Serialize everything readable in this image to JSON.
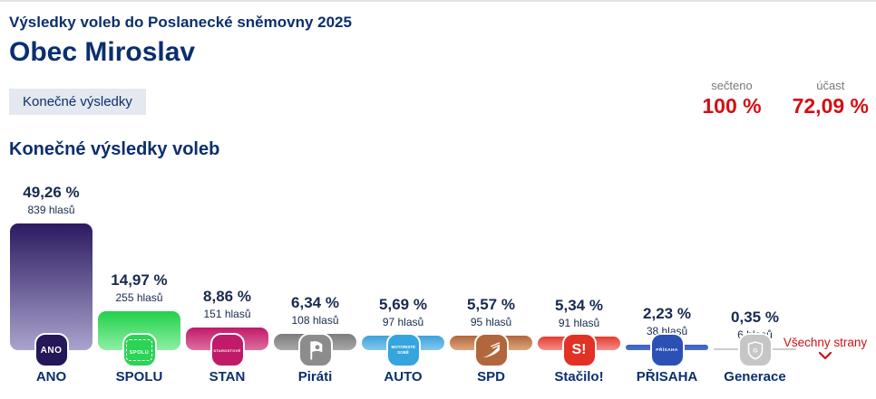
{
  "page": {
    "supertitle": "Výsledky voleb do Poslanecké sněmovny 2025",
    "title": "Obec Miroslav",
    "status_badge": "Konečné výsledky",
    "section_heading": "Konečné výsledky voleb",
    "all_parties_link": "Všechny strany"
  },
  "stats": {
    "counted_label": "sečteno",
    "counted_value": "100 %",
    "turnout_label": "účast",
    "turnout_value": "72,09 %"
  },
  "colors": {
    "heading_navy": "#0b2f6e",
    "value_navy": "#172a4f",
    "accent_red": "#d30f14",
    "badge_bg": "#e4e8ef",
    "label_gray": "#75797e"
  },
  "chart_data": {
    "type": "bar",
    "title": "Konečné výsledky voleb",
    "value_suffix": "%",
    "max_percent": 49.26,
    "ylim": [
      0,
      49.26
    ],
    "parties": [
      {
        "name": "ANO",
        "percent": 49.26,
        "percent_label": "49,26 %",
        "votes": 839,
        "votes_label": "839 hlasů",
        "color_top": "#2c1a60",
        "color_bottom": "#aaa3cd",
        "logo_bg": "#261758",
        "logo_text": "ANO"
      },
      {
        "name": "SPOLU",
        "percent": 14.97,
        "percent_label": "14,97 %",
        "votes": 255,
        "votes_label": "255 hlasů",
        "color_top": "#21d04b",
        "color_bottom": "#8eefa4",
        "logo_bg": "#2bd455",
        "logo_text": "SPOLU"
      },
      {
        "name": "STAN",
        "percent": 8.86,
        "percent_label": "8,86 %",
        "votes": 151,
        "votes_label": "151 hlasů",
        "color_top": "#c01a68",
        "color_bottom": "#de6f9f",
        "logo_bg": "#c01a68",
        "logo_text": "STAROSTOVÉ"
      },
      {
        "name": "Piráti",
        "percent": 6.34,
        "percent_label": "6,34 %",
        "votes": 108,
        "votes_label": "108 hlasů",
        "color_top": "#7d7d7d",
        "color_bottom": "#a8a8a8",
        "logo_bg": "#8c8c8c",
        "logo_icon": "pirate-flag"
      },
      {
        "name": "AUTO",
        "percent": 5.69,
        "percent_label": "5,69 %",
        "votes": 97,
        "votes_label": "97 hlasů",
        "color_top": "#3da2dc",
        "color_bottom": "#84c8ec",
        "logo_bg": "#36a4de",
        "logo_text": "MOTORISTÉ SOBĚ"
      },
      {
        "name": "SPD",
        "percent": 5.57,
        "percent_label": "5,57 %",
        "votes": 95,
        "votes_label": "95 hlasů",
        "color_top": "#b2663c",
        "color_bottom": "#dda77b",
        "logo_bg": "#b2663c",
        "logo_icon": "spd-wing"
      },
      {
        "name": "Stačilo!",
        "percent": 5.34,
        "percent_label": "5,34 %",
        "votes": 91,
        "votes_label": "91 hlasů",
        "color_top": "#e63a2e",
        "color_bottom": "#f49089",
        "logo_bg": "#e23125",
        "logo_text": "S!"
      },
      {
        "name": "PŘISAHA",
        "percent": 2.23,
        "percent_label": "2,23 %",
        "votes": 38,
        "votes_label": "38 hlasů",
        "color_top": "#3c60c4",
        "color_bottom": "#4a6fd0",
        "logo_bg": "#2b51b4",
        "logo_text": "PŘÍSAHA"
      },
      {
        "name": "Generace",
        "percent": 0.35,
        "percent_label": "0,35 %",
        "votes": 6,
        "votes_label": "6 hlasů",
        "color_top": "#cccccc",
        "color_bottom": "#cccccc",
        "logo_bg": "#c6c6c6",
        "logo_icon": "shield"
      }
    ]
  }
}
